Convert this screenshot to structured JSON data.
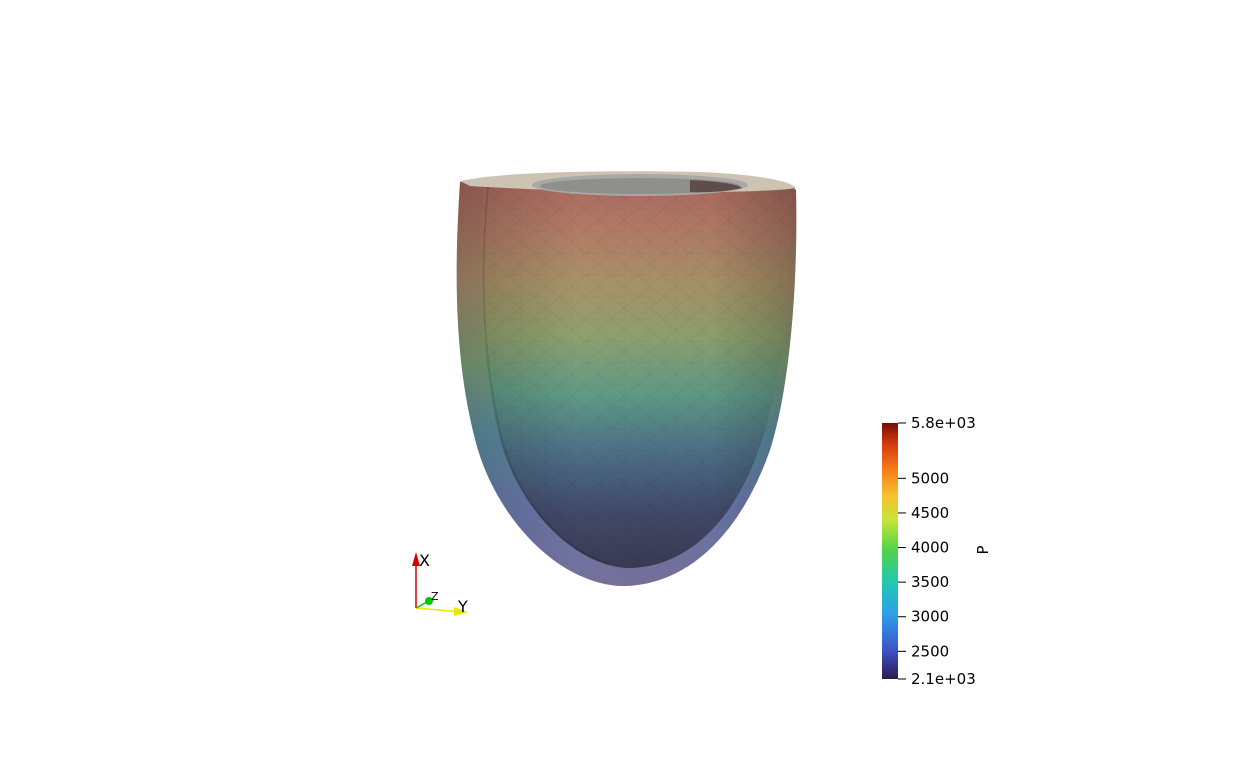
{
  "viewer": {
    "background": "#ffffff",
    "model": "heart-mesh",
    "scalar_name": "P"
  },
  "orientation_axes": {
    "x_label": "X",
    "y_label": "Y",
    "z_label": "Z",
    "x_color": "#d40000",
    "y_color": "#e8e800",
    "z_color": "#00c800"
  },
  "color_legend": {
    "title": "P",
    "range": [
      2100,
      5800
    ],
    "ticks": [
      {
        "value": 5800,
        "label": "5.8e+03"
      },
      {
        "value": 5000,
        "label": "5000"
      },
      {
        "value": 4500,
        "label": "4500"
      },
      {
        "value": 4000,
        "label": "4000"
      },
      {
        "value": 3500,
        "label": "3500"
      },
      {
        "value": 3000,
        "label": "3000"
      },
      {
        "value": 2500,
        "label": "2500"
      },
      {
        "value": 2100,
        "label": "2.1e+03"
      }
    ],
    "colormap": [
      "#2a1a4e",
      "#3b52c6",
      "#2f9ee8",
      "#22c9b0",
      "#4fd24a",
      "#c6e43a",
      "#f7c02c",
      "#f77b1a",
      "#d23a0e",
      "#7a0c05"
    ]
  }
}
